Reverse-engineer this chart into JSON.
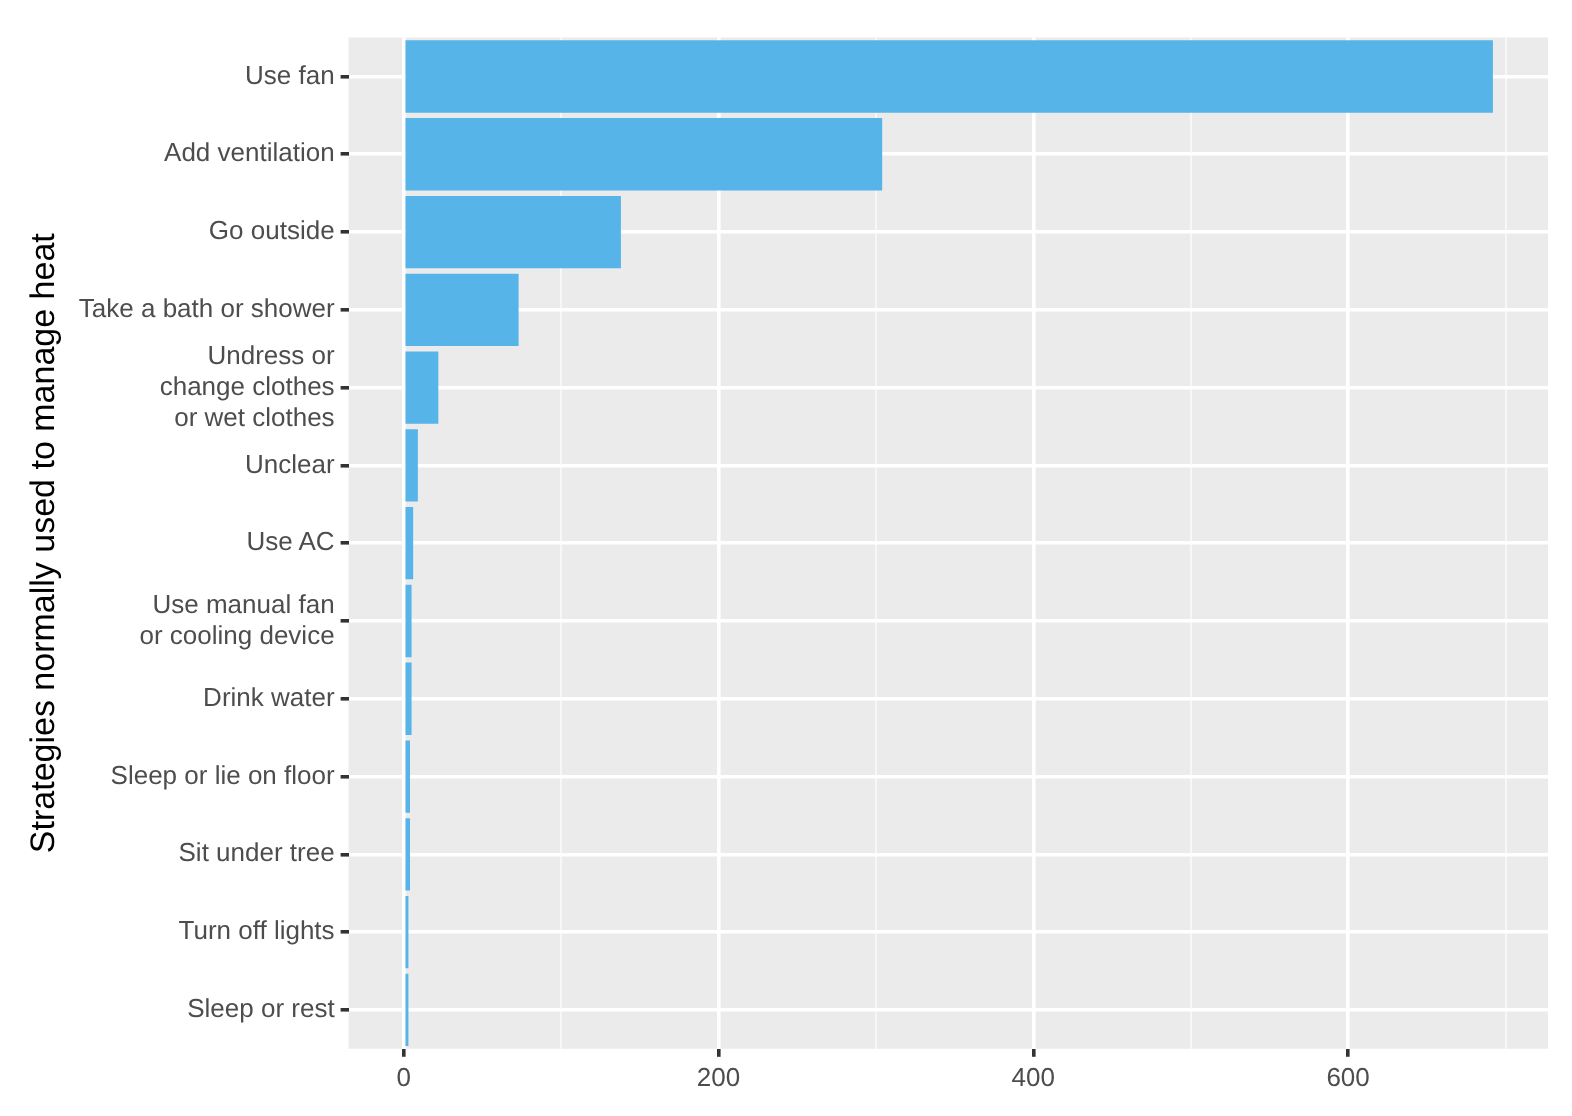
{
  "chart_data": {
    "type": "bar",
    "orientation": "horizontal",
    "ylabel": "Strategies normally used to manage heat",
    "categories": [
      "Use fan",
      "Add ventilation",
      "Go outside",
      "Take a bath or shower",
      "Undress or\nchange clothes\nor wet clothes",
      "Unclear",
      "Use AC",
      "Use manual fan\nor cooling device",
      "Drink water",
      "Sleep or lie on floor",
      "Sit under tree",
      "Turn off lights",
      "Sleep or rest"
    ],
    "values": [
      692,
      304,
      138,
      73,
      22,
      9,
      6,
      5,
      5,
      4,
      4,
      3,
      3
    ],
    "color": "#56b4e9",
    "xlim": [
      -35,
      727
    ],
    "xticks": [
      0,
      {
        "value": 100,
        "label": null
      },
      200,
      {
        "value": 300,
        "label": null
      },
      400,
      {
        "value": 500,
        "label": null
      },
      600,
      {
        "value": 700,
        "label": null
      }
    ],
    "grid": true,
    "legend": false
  }
}
